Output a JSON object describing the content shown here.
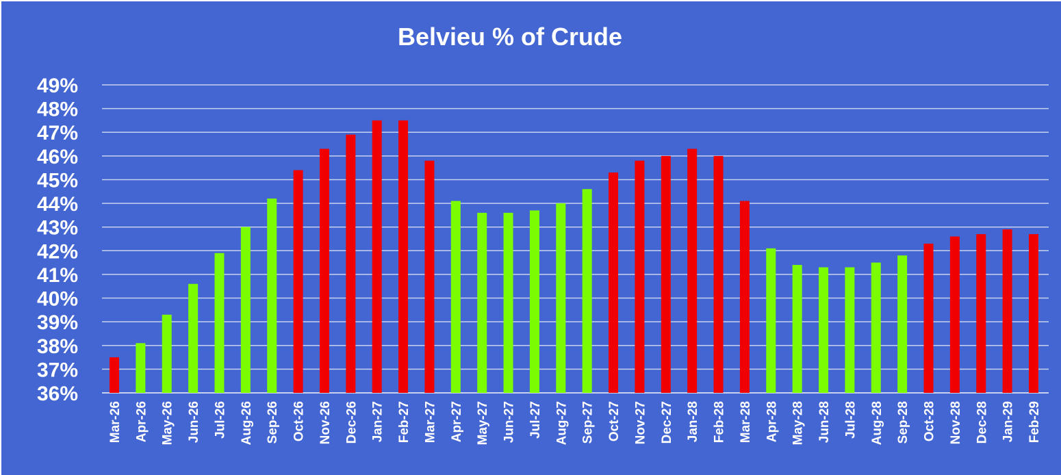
{
  "chart_data": {
    "type": "bar",
    "title": "Belvieu % of Crude",
    "xlabel": "",
    "ylabel": "",
    "ylim": [
      36,
      49
    ],
    "y_ticks": [
      "36%",
      "37%",
      "38%",
      "39%",
      "40%",
      "41%",
      "42%",
      "43%",
      "44%",
      "45%",
      "46%",
      "47%",
      "48%",
      "49%"
    ],
    "grid": true,
    "legend": "none",
    "categories": [
      "Mar-26",
      "Apr-26",
      "May-26",
      "Jun-26",
      "Jul-26",
      "Aug-26",
      "Sep-26",
      "Oct-26",
      "Nov-26",
      "Dec-26",
      "Jan-27",
      "Feb-27",
      "Mar-27",
      "Apr-27",
      "May-27",
      "Jun-27",
      "Jul-27",
      "Aug-27",
      "Sep-27",
      "Oct-27",
      "Nov-27",
      "Dec-27",
      "Jan-28",
      "Feb-28",
      "Mar-28",
      "Apr-28",
      "May-28",
      "Jun-28",
      "Jul-28",
      "Aug-28",
      "Sep-28",
      "Oct-28",
      "Nov-28",
      "Dec-28",
      "Jan-29",
      "Feb-29"
    ],
    "values": [
      37.5,
      38.1,
      39.3,
      40.6,
      41.9,
      43.0,
      44.2,
      45.4,
      46.3,
      46.9,
      47.5,
      47.5,
      45.8,
      44.1,
      43.6,
      43.6,
      43.7,
      44.0,
      44.6,
      45.3,
      45.8,
      46.0,
      46.3,
      46.0,
      44.1,
      42.1,
      41.4,
      41.3,
      41.3,
      41.5,
      41.8,
      42.3,
      42.6,
      42.7,
      42.9,
      42.7
    ],
    "bar_colors": [
      "red",
      "green",
      "green",
      "green",
      "green",
      "green",
      "green",
      "red",
      "red",
      "red",
      "red",
      "red",
      "red",
      "green",
      "green",
      "green",
      "green",
      "green",
      "green",
      "red",
      "red",
      "red",
      "red",
      "red",
      "red",
      "green",
      "green",
      "green",
      "green",
      "green",
      "green",
      "red",
      "red",
      "red",
      "red",
      "red"
    ]
  },
  "colors": {
    "background": "#4366D2",
    "grid": "#C8D2F0",
    "red": "#F00000",
    "green": "#7CFC00",
    "text": "#FFFFFF"
  }
}
